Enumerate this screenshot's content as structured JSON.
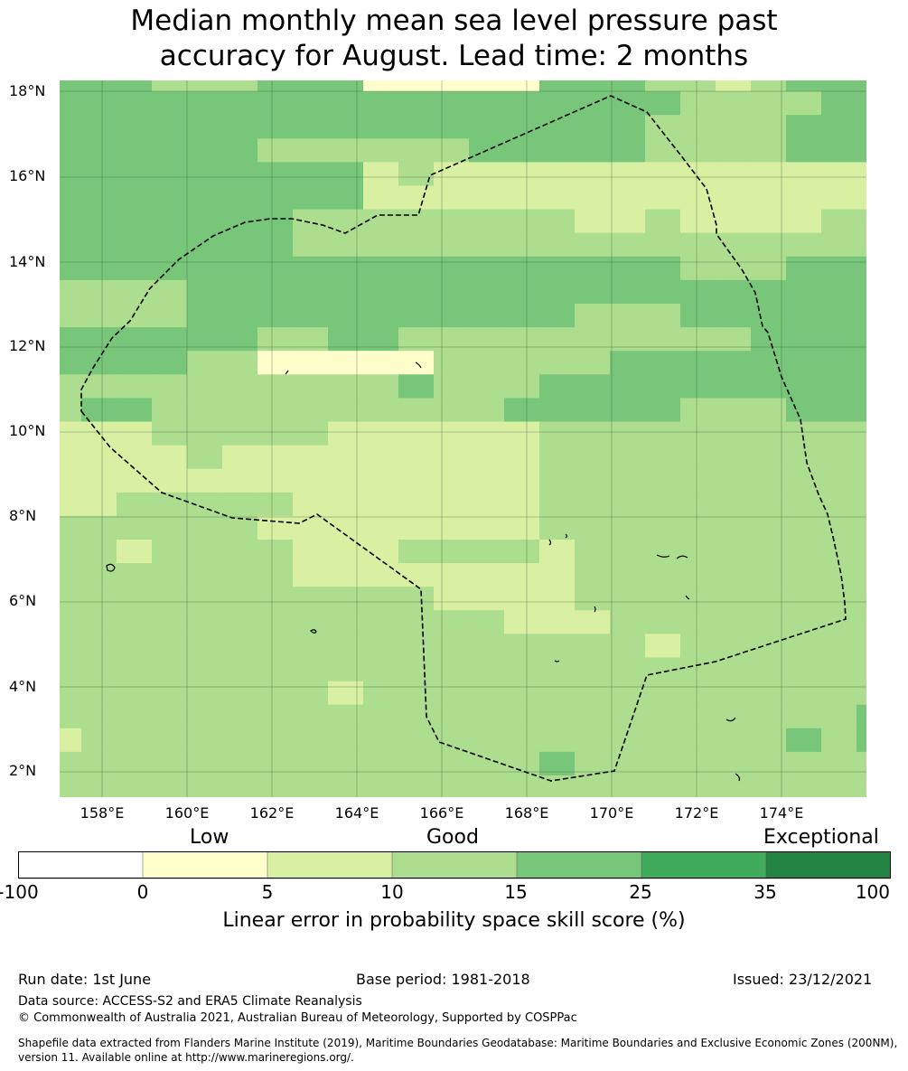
{
  "title": {
    "line1": "Median monthly mean sea level pressure past",
    "line2": "accuracy for August. Lead time: 2 months"
  },
  "map": {
    "lat_labels": [
      "18°N",
      "16°N",
      "14°N",
      "12°N",
      "10°N",
      "8°N",
      "6°N",
      "4°N",
      "2°N"
    ],
    "lon_labels": [
      "158°E",
      "160°E",
      "162°E",
      "164°E",
      "166°E",
      "168°E",
      "170°E",
      "172°E",
      "174°E"
    ],
    "palette": {
      "white": "#ffffff",
      "cream": "#ffffcc",
      "pale_green": "#d9f0a3",
      "light_green": "#addd8e",
      "mid_green": "#78c679",
      "green": "#41ab5d",
      "dark_green": "#238443"
    },
    "boundary_color": "#000000",
    "grid_color": "#3a5a3a"
  },
  "colorbar": {
    "categories": [
      "Low",
      "Good",
      "Exceptional"
    ],
    "ticks": [
      "-100",
      "0",
      "5",
      "10",
      "15",
      "25",
      "35",
      "100"
    ],
    "colors": [
      "#ffffff",
      "#ffffcc",
      "#d9f0a3",
      "#addd8e",
      "#78c679",
      "#41ab5d",
      "#238443"
    ],
    "label": "Linear error in probability space skill score (%)"
  },
  "footer": {
    "run_date": "Run date: 1st June",
    "base_period": "Base period: 1981-2018",
    "issued": "Issued: 23/12/2021",
    "data_source": "Data source: ACCESS-S2 and ERA5 Climate Reanalysis",
    "copyright": "© Commonwealth of Australia 2021, Australian Bureau of Meteorology, Supported by COSPPac",
    "shapefile_line1": "Shapefile data extracted from Flanders Marine Institute (2019), Maritime Boundaries Geodatabase: Maritime Boundaries and Exclusive Economic Zones (200NM),",
    "shapefile_line2": "version 11. Available online at http://www.marineregions.org/."
  }
}
